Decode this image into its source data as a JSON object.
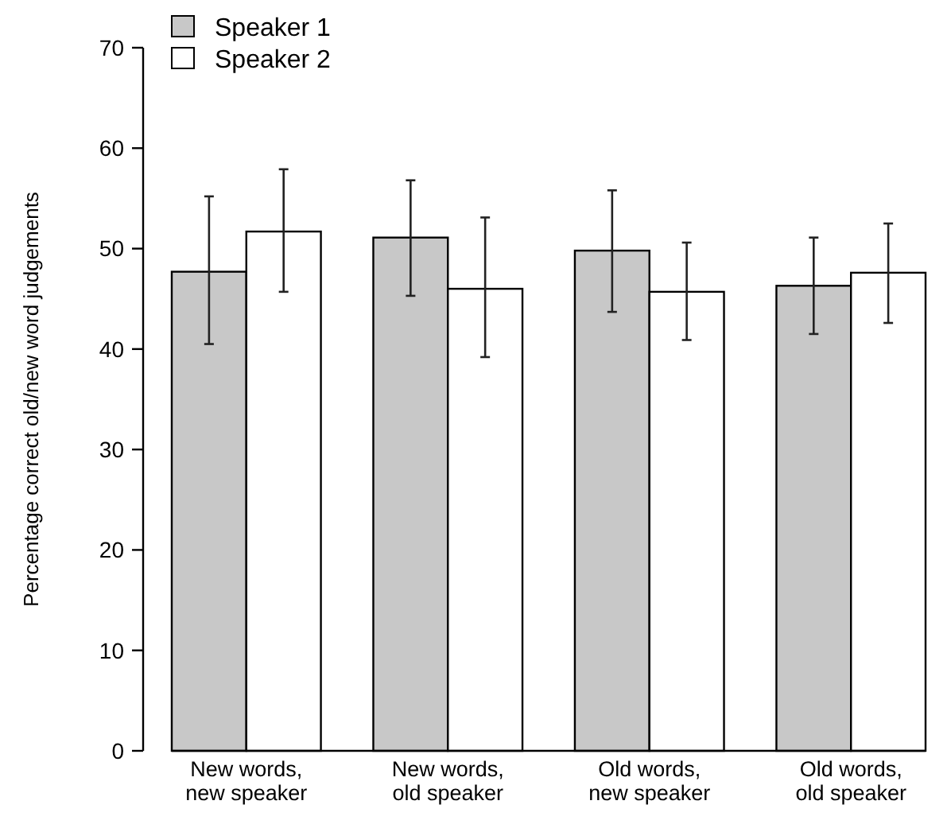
{
  "chart_data": {
    "type": "bar",
    "ylabel": "Percentage correct old/new word judgements",
    "categories": [
      "New words, new speaker",
      "New words, old speaker",
      "Old words, new speaker",
      "Old words, old speaker"
    ],
    "series": [
      {
        "name": "Speaker 1",
        "color": "#c8c8c8",
        "values": [
          47.7,
          51.1,
          49.8,
          46.3
        ],
        "errors": [
          [
            40.5,
            55.2
          ],
          [
            45.3,
            56.8
          ],
          [
            43.7,
            55.8
          ],
          [
            41.5,
            51.1
          ]
        ]
      },
      {
        "name": "Speaker 2",
        "color": "#ffffff",
        "values": [
          51.7,
          46.0,
          45.7,
          47.6
        ],
        "errors": [
          [
            45.7,
            57.9
          ],
          [
            39.2,
            53.1
          ],
          [
            40.9,
            50.6
          ],
          [
            42.6,
            52.5
          ]
        ]
      }
    ],
    "ylim": [
      0,
      70
    ],
    "yticks": [
      0,
      10,
      20,
      30,
      40,
      50,
      60,
      70
    ],
    "grid": false,
    "legend": "top left"
  }
}
